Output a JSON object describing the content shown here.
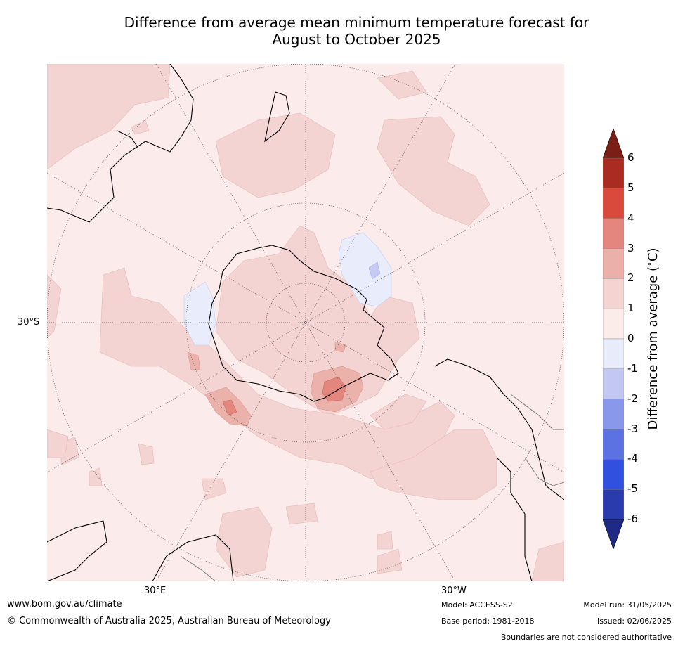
{
  "title": {
    "line1": "Difference from average mean minimum temperature forecast for",
    "line2": "August to October 2025"
  },
  "map": {
    "projection": "south-polar-stereographic",
    "lat_labels": [
      "30°S"
    ],
    "lon_labels": [
      "30°E",
      "30°W"
    ],
    "colors": {
      "band_0_1": "#fbebea",
      "band_1_2": "#f4d4d2",
      "band_2_3": "#ebb2ab",
      "band_3_4": "#e3867d",
      "band_m1_0": "#e9ecfa",
      "band_m2_m1": "#c5cbf2",
      "coast": "#000000",
      "border": "#777777"
    }
  },
  "colorbar": {
    "label": "Difference from average ( $^\\circ$C)",
    "label_text": "Difference from average (",
    "label_unit": "C)",
    "ticks": [
      "6",
      "5",
      "4",
      "3",
      "2",
      "1",
      "0",
      "-1",
      "-2",
      "-3",
      "-4",
      "-5",
      "-6"
    ],
    "bands": [
      "#a92b22",
      "#d94a3c",
      "#e4867d",
      "#ebb0a9",
      "#f4d4d1",
      "#fbebe9",
      "#e8ebfa",
      "#c2c8f2",
      "#8998ea",
      "#5c71e2",
      "#3250e0",
      "#2a3bad"
    ],
    "top_arrow_color": "#7a1e16",
    "bottom_arrow_color": "#1f2a86"
  },
  "footer": {
    "website": "www.bom.gov.au/climate",
    "copyright": "© Commonwealth of Australia 2025, Australian Bureau of Meteorology",
    "model": "Model: ACCESS-S2",
    "base_period": "Base period: 1981-2018",
    "model_run": "Model run: 31/05/2025",
    "issued": "Issued: 02/06/2025",
    "disclaimer": "Boundaries are not considered authoritative"
  }
}
